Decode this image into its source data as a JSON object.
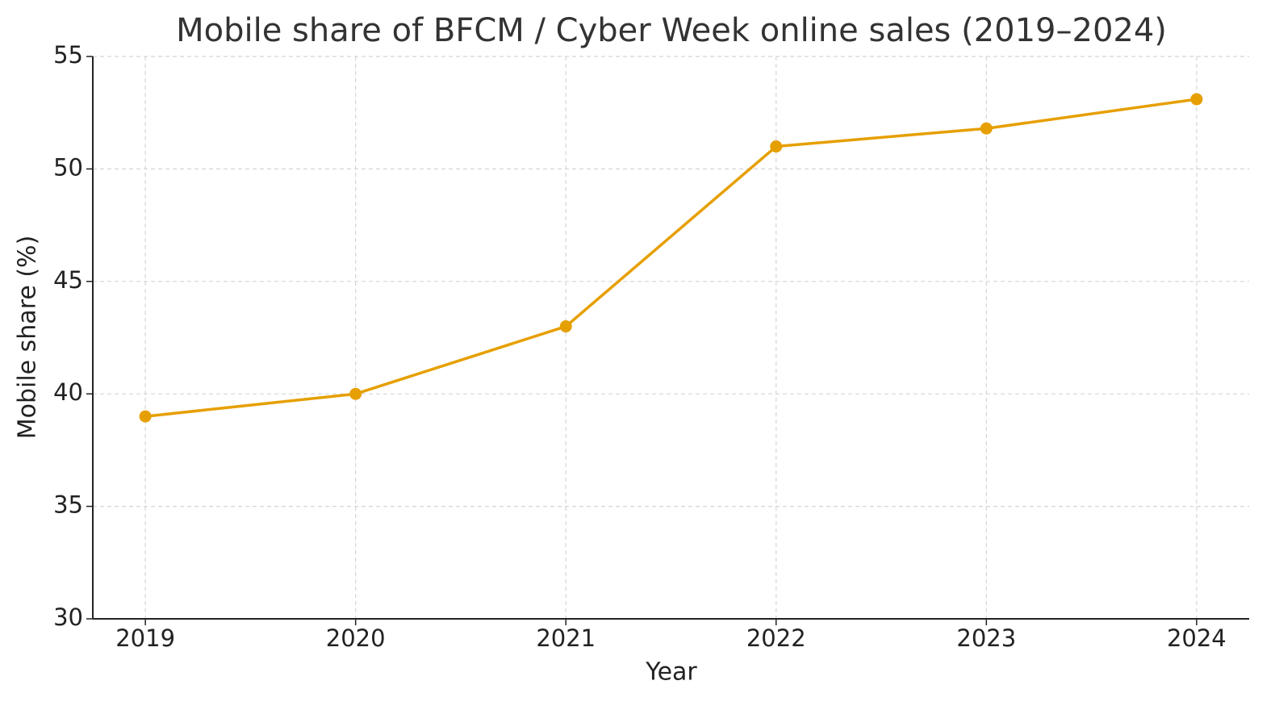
{
  "chart_data": {
    "type": "line",
    "title": "Mobile share of BFCM / Cyber Week online sales (2019–2024)",
    "x_label": "Year",
    "y_label": "Mobile share (%)",
    "x": [
      2019,
      2020,
      2021,
      2022,
      2023,
      2024
    ],
    "values": [
      39,
      40,
      43,
      51,
      51.8,
      53.1
    ],
    "color": "#e69f00",
    "xlim": [
      2018.75,
      2024.25
    ],
    "xticks": [
      2019,
      2020,
      2021,
      2022,
      2023,
      2024
    ],
    "ylim": [
      30,
      55
    ],
    "yticks": [
      30,
      35,
      40,
      45,
      50,
      55
    ],
    "grid": true,
    "markers": true
  }
}
